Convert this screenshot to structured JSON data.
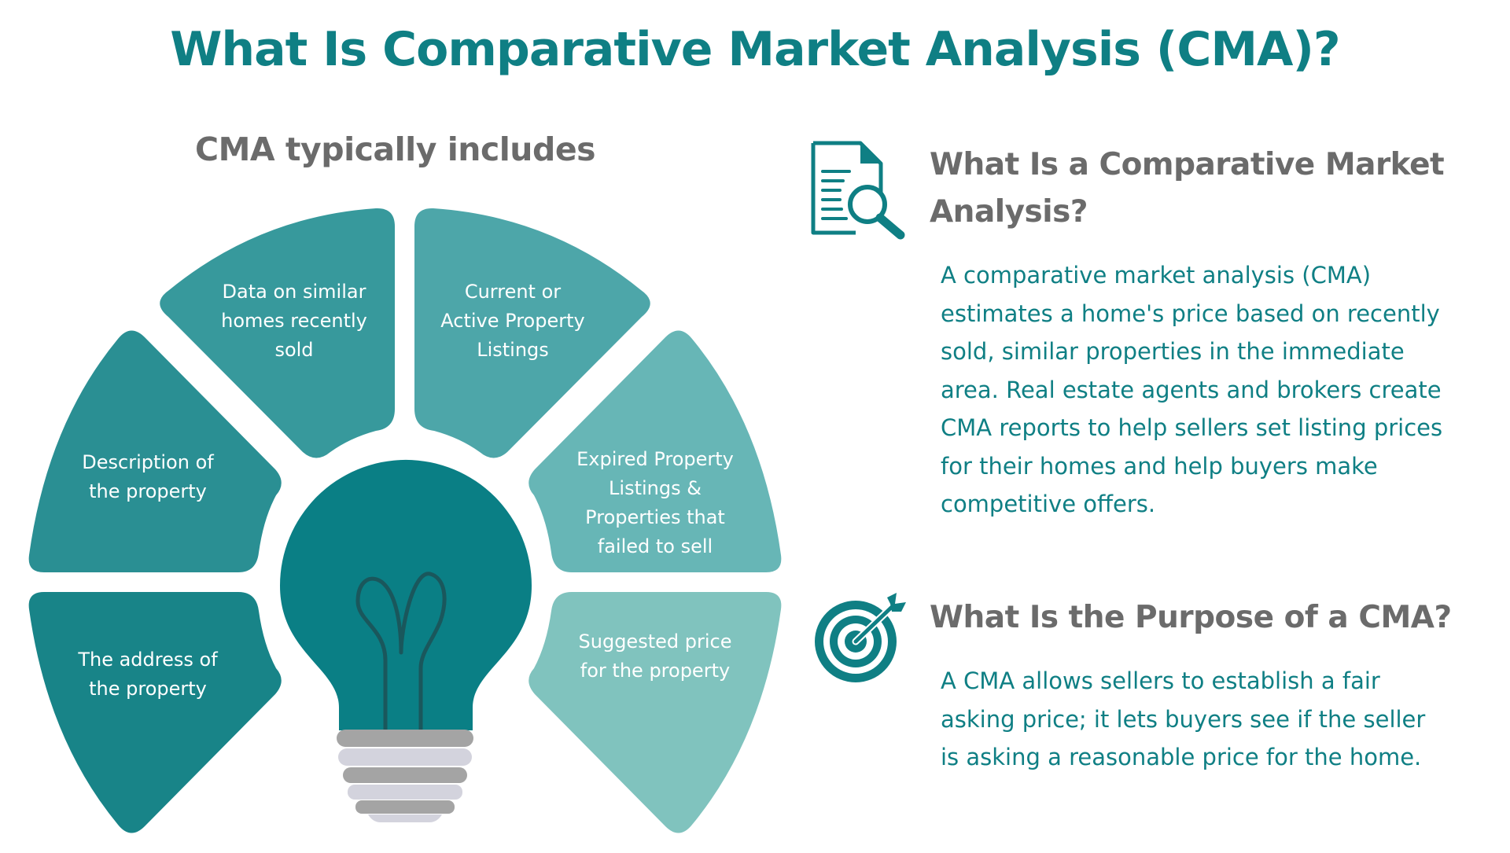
{
  "title": "What Is Comparative Market Analysis (CMA)?",
  "diagram": {
    "heading": "CMA typically includes",
    "segments": [
      {
        "id": "recent-sales",
        "label": "Data on similar\nhomes recently\nsold",
        "color": "#37999c"
      },
      {
        "id": "active-listings",
        "label": "Current or\nActive Property\nListings",
        "color": "#4da6a9"
      },
      {
        "id": "description",
        "label": "Description of\nthe property",
        "color": "#2a8f93"
      },
      {
        "id": "expired-listings",
        "label": "Expired Property\nListings &\nProperties that\nfailed to sell",
        "color": "#67b6b6"
      },
      {
        "id": "address",
        "label": "The address of\nthe property",
        "color": "#188488"
      },
      {
        "id": "suggested-price",
        "label": "Suggested price\nfor the property",
        "color": "#80c3be"
      }
    ],
    "bulb": {
      "icon": "lightbulb-icon",
      "glass_color": "#0a7f85",
      "base_colors": [
        "#a4a4a4",
        "#d3d3dd"
      ]
    }
  },
  "sections": [
    {
      "icon": "document-search-icon",
      "heading": "What Is a Comparative Market\nAnalysis?",
      "body": "A comparative market analysis (CMA)\nestimates a home's price based on recently\nsold, similar properties in the immediate\narea. Real estate agents and brokers create\nCMA reports to help sellers set listing prices\nfor their homes and help buyers make\ncompetitive offers."
    },
    {
      "icon": "target-icon",
      "heading": "What Is the Purpose of a CMA?",
      "body": "A CMA allows sellers to establish a fair\nasking price; it lets buyers see if the seller\nis asking a reasonable price for the home."
    }
  ],
  "colors": {
    "accent": "#0f7f84",
    "heading_gray": "#6b6b6b",
    "background": "#ffffff"
  }
}
